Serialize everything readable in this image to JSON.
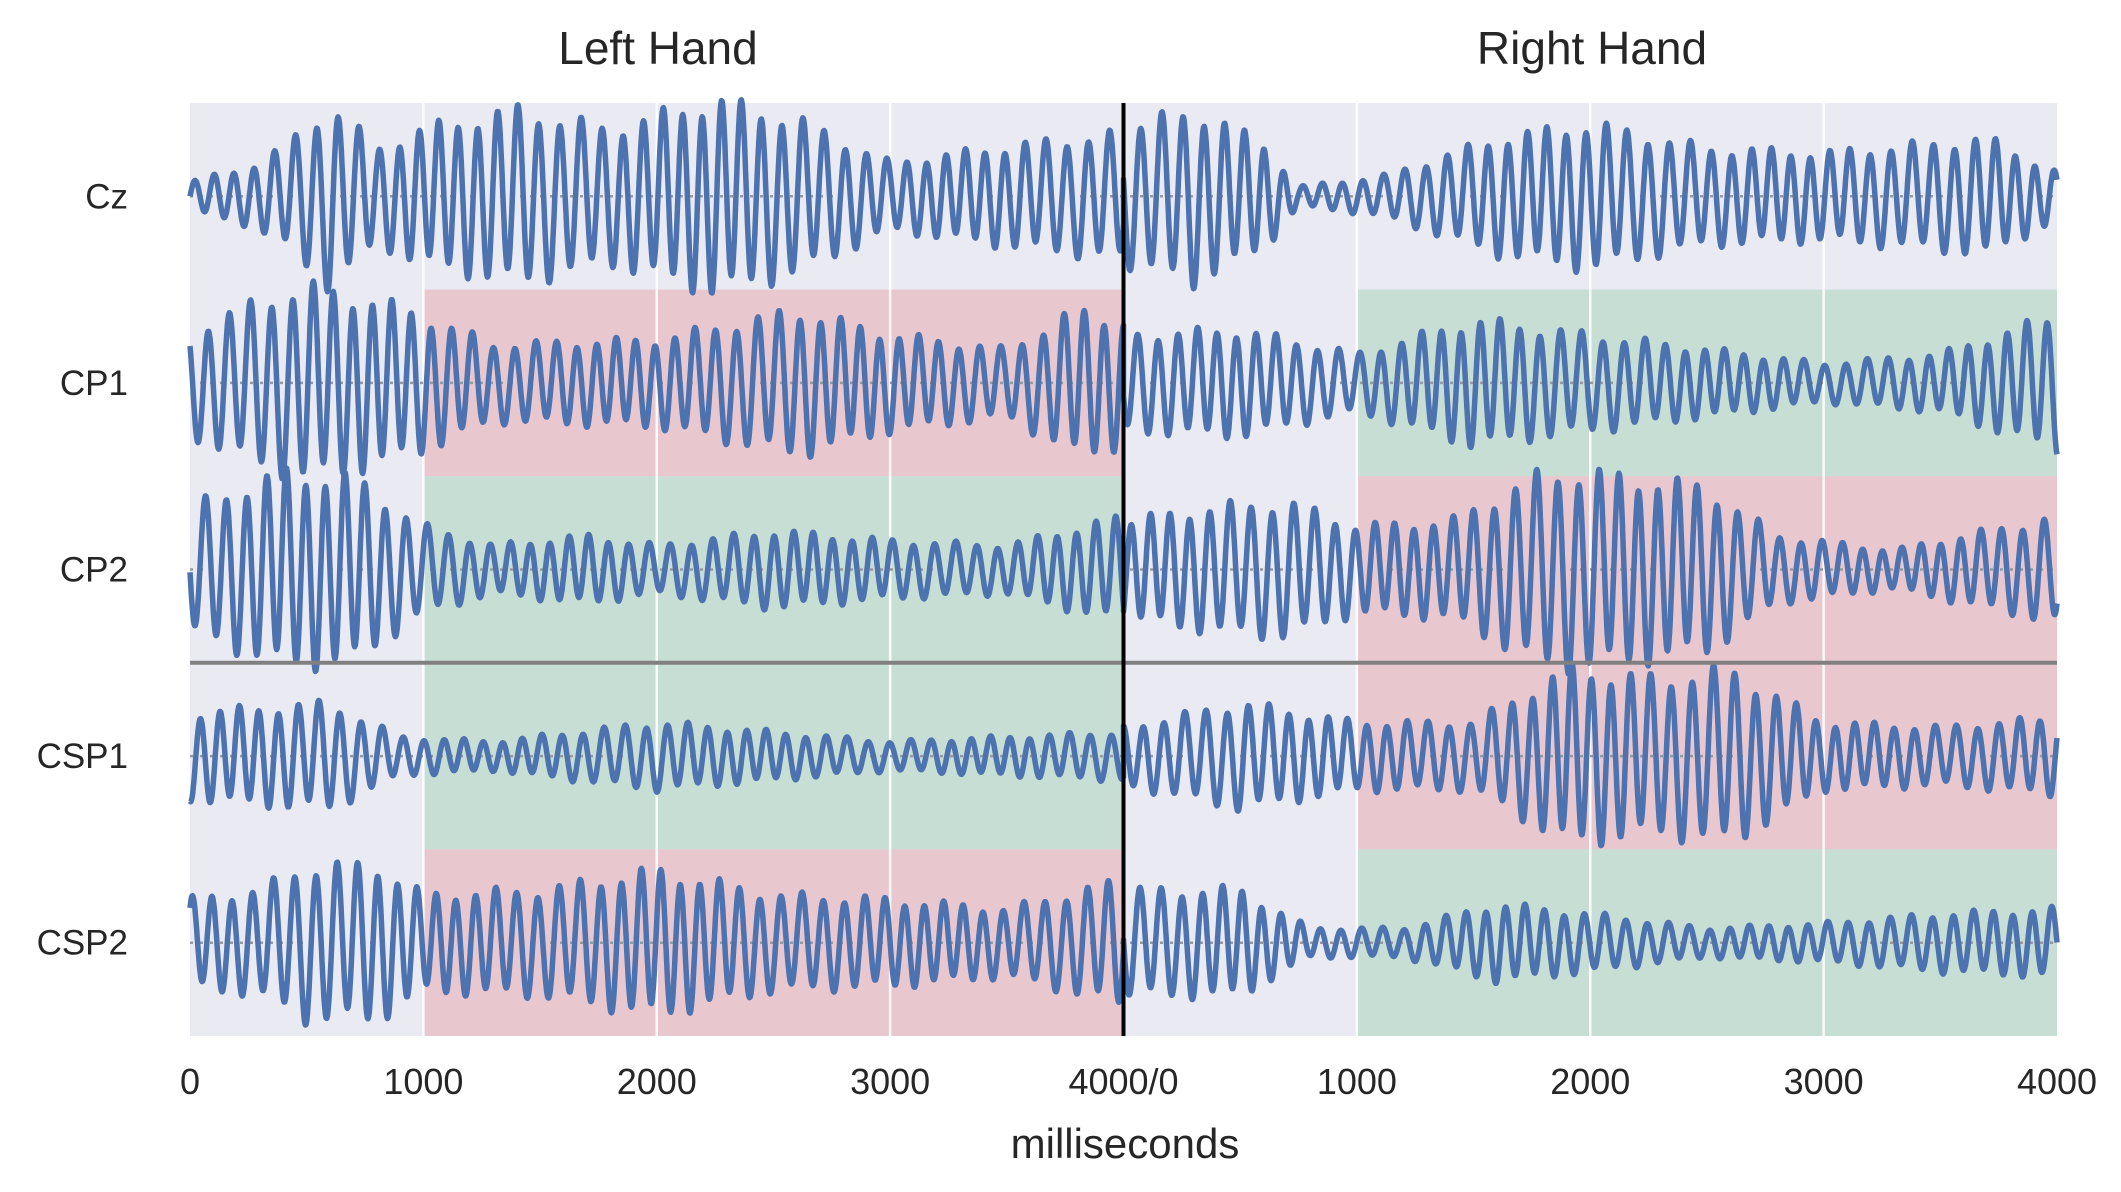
{
  "chart_data": {
    "type": "line",
    "panel_titles": [
      "Left Hand",
      "Right Hand"
    ],
    "xlabel": "milliseconds",
    "x_tick_labels": [
      "0",
      "1000",
      "2000",
      "3000",
      "4000/0",
      "1000",
      "2000",
      "3000",
      "4000"
    ],
    "xlim": [
      0,
      8000
    ],
    "grid": true,
    "channels": [
      "Cz",
      "CP1",
      "CP2",
      "CSP1",
      "CSP2"
    ],
    "highlight_ms": [
      1000,
      4000
    ],
    "highlights": [
      {
        "channel": "Cz",
        "left": "none",
        "right": "none"
      },
      {
        "channel": "CP1",
        "left": "red",
        "right": "green"
      },
      {
        "channel": "CP2",
        "left": "green",
        "right": "red"
      },
      {
        "channel": "CSP1",
        "left": "green",
        "right": "red"
      },
      {
        "channel": "CSP2",
        "left": "red",
        "right": "green"
      }
    ],
    "amplitude_envelopes": {
      "Cz": {
        "left": [
          [
            0,
            0.15
          ],
          [
            250,
            0.3
          ],
          [
            400,
            0.5
          ],
          [
            600,
            0.95
          ],
          [
            800,
            0.5
          ],
          [
            1000,
            0.7
          ],
          [
            1400,
            0.9
          ],
          [
            1800,
            0.7
          ],
          [
            2250,
            1.0
          ],
          [
            2600,
            0.8
          ],
          [
            3000,
            0.35
          ],
          [
            3600,
            0.55
          ],
          [
            4000,
            0.65
          ]
        ],
        "right": [
          [
            0,
            0.7
          ],
          [
            300,
            0.9
          ],
          [
            600,
            0.55
          ],
          [
            750,
            0.1
          ],
          [
            1100,
            0.2
          ],
          [
            1600,
            0.6
          ],
          [
            2000,
            0.75
          ],
          [
            2500,
            0.5
          ],
          [
            3000,
            0.45
          ],
          [
            3700,
            0.6
          ],
          [
            4000,
            0.25
          ]
        ]
      },
      "CP1": {
        "left": [
          [
            0,
            0.55
          ],
          [
            300,
            0.85
          ],
          [
            500,
            1.0
          ],
          [
            800,
            0.85
          ],
          [
            1000,
            0.7
          ],
          [
            1300,
            0.4
          ],
          [
            2000,
            0.45
          ],
          [
            2600,
            0.75
          ],
          [
            3000,
            0.5
          ],
          [
            3500,
            0.35
          ],
          [
            3800,
            0.75
          ],
          [
            4000,
            0.65
          ]
        ],
        "right": [
          [
            0,
            0.5
          ],
          [
            500,
            0.55
          ],
          [
            1000,
            0.3
          ],
          [
            1500,
            0.65
          ],
          [
            2000,
            0.5
          ],
          [
            2500,
            0.35
          ],
          [
            3000,
            0.2
          ],
          [
            3500,
            0.3
          ],
          [
            4000,
            0.7
          ]
        ]
      },
      "CP2": {
        "left": [
          [
            0,
            0.65
          ],
          [
            400,
            1.0
          ],
          [
            700,
            0.95
          ],
          [
            1000,
            0.45
          ],
          [
            1300,
            0.25
          ],
          [
            1700,
            0.35
          ],
          [
            2000,
            0.25
          ],
          [
            2500,
            0.4
          ],
          [
            3000,
            0.3
          ],
          [
            3500,
            0.25
          ],
          [
            4000,
            0.55
          ]
        ],
        "right": [
          [
            0,
            0.5
          ],
          [
            400,
            0.65
          ],
          [
            700,
            0.7
          ],
          [
            1000,
            0.45
          ],
          [
            1400,
            0.5
          ],
          [
            1800,
            1.0
          ],
          [
            2000,
            1.0
          ],
          [
            2500,
            0.85
          ],
          [
            2800,
            0.35
          ],
          [
            3300,
            0.2
          ],
          [
            4000,
            0.55
          ]
        ]
      },
      "CSP1": {
        "left": [
          [
            0,
            0.45
          ],
          [
            300,
            0.5
          ],
          [
            600,
            0.55
          ],
          [
            900,
            0.2
          ],
          [
            1300,
            0.15
          ],
          [
            2000,
            0.35
          ],
          [
            3000,
            0.15
          ],
          [
            4000,
            0.25
          ]
        ],
        "right": [
          [
            0,
            0.3
          ],
          [
            500,
            0.55
          ],
          [
            1000,
            0.35
          ],
          [
            1500,
            0.35
          ],
          [
            1900,
            0.9
          ],
          [
            2300,
            0.8
          ],
          [
            2600,
            0.9
          ],
          [
            3000,
            0.35
          ],
          [
            3500,
            0.3
          ],
          [
            4000,
            0.4
          ]
        ]
      },
      "CSP2": {
        "left": [
          [
            0,
            0.45
          ],
          [
            300,
            0.55
          ],
          [
            500,
            0.8
          ],
          [
            800,
            0.8
          ],
          [
            1000,
            0.5
          ],
          [
            1500,
            0.55
          ],
          [
            2000,
            0.75
          ],
          [
            2500,
            0.5
          ],
          [
            3000,
            0.45
          ],
          [
            3500,
            0.35
          ],
          [
            4000,
            0.65
          ]
        ],
        "right": [
          [
            0,
            0.55
          ],
          [
            500,
            0.55
          ],
          [
            800,
            0.15
          ],
          [
            1200,
            0.15
          ],
          [
            1600,
            0.4
          ],
          [
            2000,
            0.3
          ],
          [
            2500,
            0.15
          ],
          [
            3000,
            0.2
          ],
          [
            3500,
            0.3
          ],
          [
            4000,
            0.35
          ]
        ]
      }
    },
    "colors": {
      "background": "#eaeaf2",
      "grid": "#ffffff",
      "line": "#4c72b0",
      "red_band": "#e8b8c0",
      "green_band": "#b8d8c8",
      "baseline": "#999999",
      "divider": "#808080",
      "center_line": "#000000"
    }
  }
}
